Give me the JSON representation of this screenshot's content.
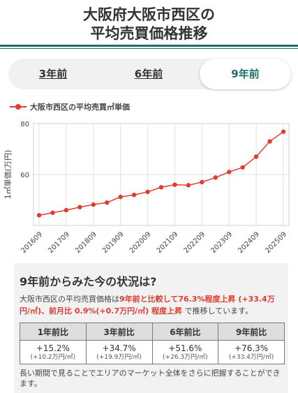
{
  "header": {
    "title_line1": "大阪府大阪市西区の",
    "title_line2": "平均売買価格推移"
  },
  "tabs": [
    {
      "label": "3年前",
      "active": false
    },
    {
      "label": "6年前",
      "active": false
    },
    {
      "label": "9年前",
      "active": true
    }
  ],
  "colors": {
    "accent": "#1f6e6a",
    "series": "#e03c31",
    "panel_bg": "#f2f2f2"
  },
  "chart_data": {
    "type": "line",
    "series": [
      {
        "name": "大阪市西区の平均売買㎡単価",
        "x": [
          "201609",
          "201703",
          "201709",
          "201803",
          "201809",
          "201903",
          "201909",
          "202003",
          "202009",
          "202103",
          "202109",
          "202203",
          "202209",
          "202303",
          "202309",
          "202403",
          "202409",
          "202503",
          "202509"
        ],
        "values": [
          44.0,
          45.0,
          46.0,
          47.2,
          48.2,
          49.0,
          51.2,
          52.0,
          53.2,
          55.0,
          56.0,
          55.8,
          57.0,
          58.8,
          61.0,
          62.8,
          67.0,
          73.0,
          76.8
        ]
      }
    ],
    "x_tick_labels": [
      "201609",
      "201709",
      "201809",
      "201909",
      "202009",
      "202109",
      "202209",
      "202309",
      "202409",
      "202509"
    ],
    "ylabel": "1㎡単価(万円)",
    "yticks": [
      60,
      80
    ],
    "ylim": [
      40,
      80
    ],
    "grid": true,
    "legend": "top-left"
  },
  "status": {
    "heading": "9年前からみた今の状況は?",
    "prefix": "大阪市西区の平均売買価格は",
    "highlight": "9年前と比較して76.3%程度上昇 (+33.4万円/㎡)、前月比 0.9%(+0.7万円/㎡) 程度上昇",
    "suffix": " で推移しています。",
    "table": {
      "headers": [
        "1年前比",
        "3年前比",
        "6年前比",
        "9年前比"
      ],
      "rows": [
        {
          "main": "+15.2%",
          "sub": "(+10.2万円/㎡)"
        },
        {
          "main": "+34.7%",
          "sub": "(+19.9万円/㎡)"
        },
        {
          "main": "+51.6%",
          "sub": "(+26.3万円/㎡)"
        },
        {
          "main": "+76.3%",
          "sub": "(+33.4万円/㎡)"
        }
      ]
    },
    "footnote": "長い期間で見ることでエリアのマーケット全体をさらに把握することができます。"
  }
}
